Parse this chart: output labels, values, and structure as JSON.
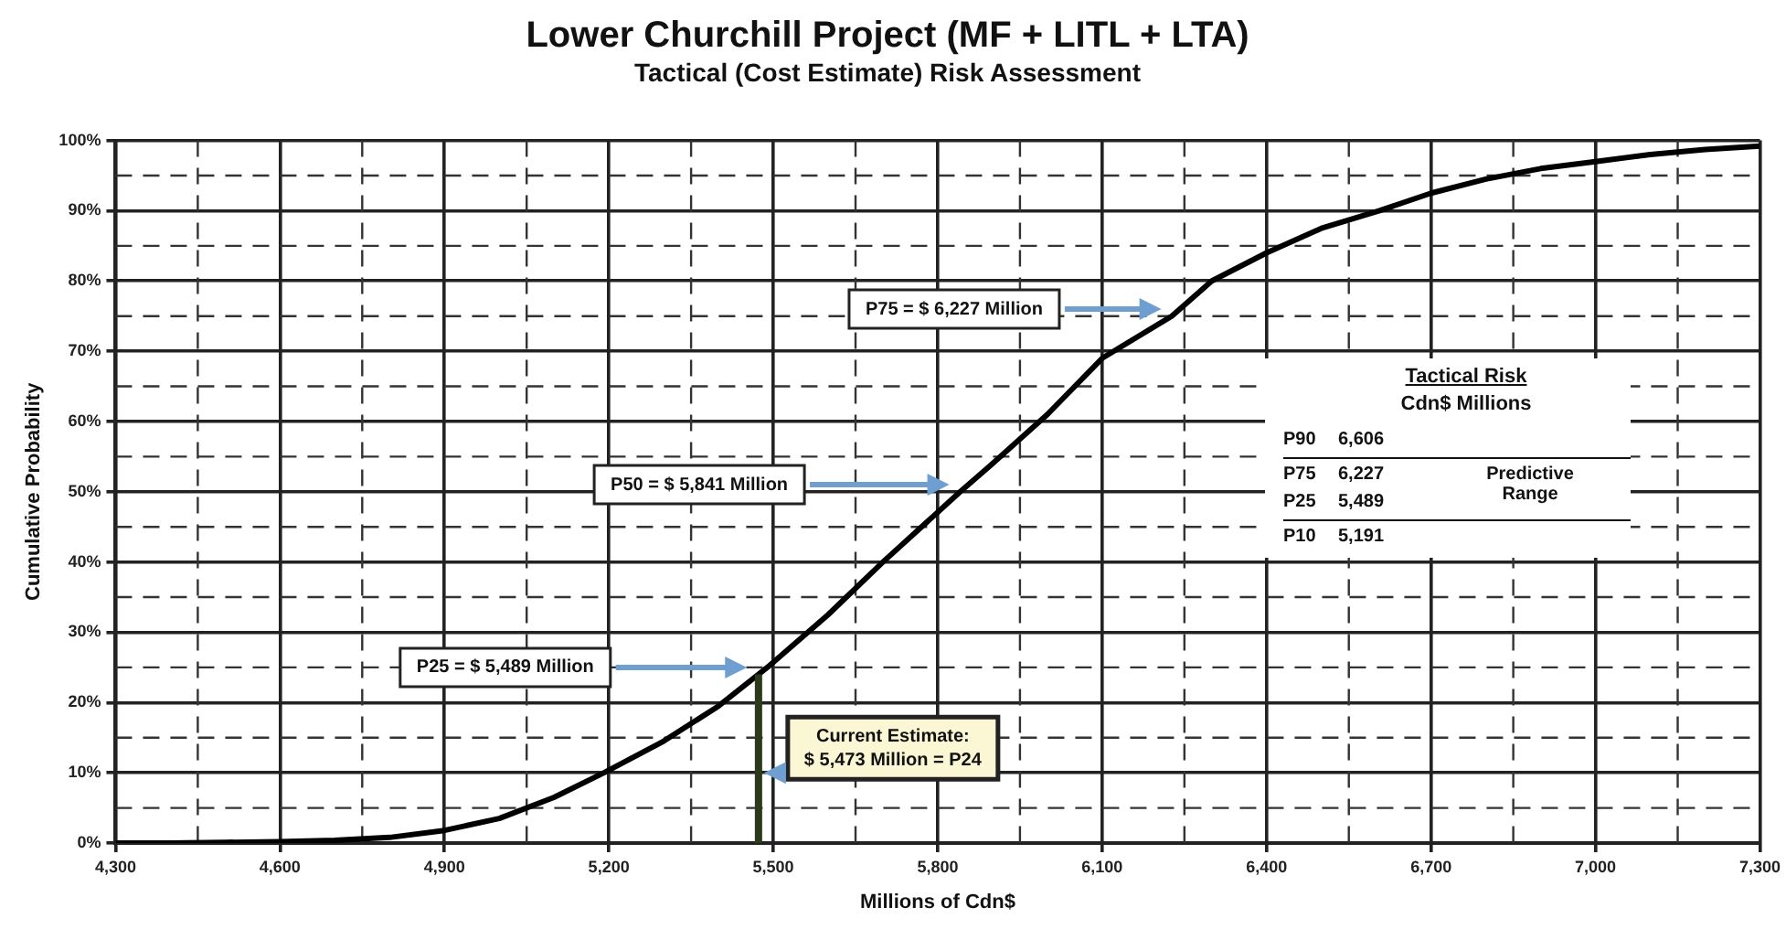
{
  "chart_data": {
    "type": "line",
    "title": "Lower Churchill Project (MF + LITL + LTA)",
    "subtitle": "Tactical (Cost Estimate) Risk Assessment",
    "xlabel": "Millions of Cdn$",
    "ylabel": "Cumulative Probability",
    "x": [
      4300,
      4400,
      4500,
      4600,
      4700,
      4800,
      4900,
      5000,
      5100,
      5191,
      5300,
      5400,
      5489,
      5600,
      5700,
      5841,
      5900,
      6000,
      6100,
      6227,
      6300,
      6400,
      6500,
      6606,
      6700,
      6800,
      6900,
      7000,
      7100,
      7200,
      7300
    ],
    "series": [
      {
        "color": "#000000",
        "values": [
          0,
          0,
          0.1,
          0.2,
          0.4,
          0.8,
          1.8,
          3.5,
          6.5,
          10,
          14.5,
          19.5,
          25,
          32.5,
          40,
          50,
          54,
          61,
          69,
          75,
          80,
          84,
          87.5,
          90,
          92.5,
          94.5,
          96,
          97,
          98,
          98.7,
          99.2
        ]
      }
    ],
    "xlim": [
      4300,
      7300
    ],
    "ylim": [
      0,
      100
    ],
    "xticks": [
      {
        "value": 4300,
        "label": "4,300"
      },
      {
        "value": 4450,
        "label": null
      },
      {
        "value": 4600,
        "label": "4,600"
      },
      {
        "value": 4750,
        "label": null
      },
      {
        "value": 4900,
        "label": "4,900"
      },
      {
        "value": 5050,
        "label": null
      },
      {
        "value": 5200,
        "label": "5,200"
      },
      {
        "value": 5350,
        "label": null
      },
      {
        "value": 5500,
        "label": "5,500"
      },
      {
        "value": 5650,
        "label": null
      },
      {
        "value": 5800,
        "label": "5,800"
      },
      {
        "value": 5950,
        "label": null
      },
      {
        "value": 6100,
        "label": "6,100"
      },
      {
        "value": 6250,
        "label": null
      },
      {
        "value": 6400,
        "label": "6,400"
      },
      {
        "value": 6550,
        "label": null
      },
      {
        "value": 6700,
        "label": "6,700"
      },
      {
        "value": 6850,
        "label": null
      },
      {
        "value": 7000,
        "label": "7,000"
      },
      {
        "value": 7150,
        "label": null
      },
      {
        "value": 7300,
        "label": "7,300"
      }
    ],
    "yticks": [
      {
        "value": 0,
        "label": "0%"
      },
      {
        "value": 5,
        "label": null
      },
      {
        "value": 10,
        "label": "10%"
      },
      {
        "value": 15,
        "label": null
      },
      {
        "value": 20,
        "label": "20%"
      },
      {
        "value": 25,
        "label": null
      },
      {
        "value": 30,
        "label": "30%"
      },
      {
        "value": 35,
        "label": null
      },
      {
        "value": 40,
        "label": "40%"
      },
      {
        "value": 45,
        "label": null
      },
      {
        "value": 50,
        "label": "50%"
      },
      {
        "value": 55,
        "label": null
      },
      {
        "value": 60,
        "label": "60%"
      },
      {
        "value": 65,
        "label": null
      },
      {
        "value": 70,
        "label": "70%"
      },
      {
        "value": 75,
        "label": null
      },
      {
        "value": 80,
        "label": "80%"
      },
      {
        "value": 85,
        "label": null
      },
      {
        "value": 90,
        "label": "90%"
      },
      {
        "value": 95,
        "label": null
      },
      {
        "value": 100,
        "label": "100%"
      }
    ],
    "grid": true,
    "legend": false,
    "marker": "none",
    "line_style": "solid",
    "ref_lines": [
      {
        "axis": "x",
        "value": 5473,
        "label": "Current Estimate:\n$ 5,473 Million = P24",
        "color": "#2c3a1c"
      }
    ],
    "annotations": [
      "P75 = $ 6,227 Million",
      "P50 = $ 5,841 Million",
      "P25 = $ 5,489 Million",
      "Tactical Risk",
      "Cdn$ Millions",
      "P90",
      "6,606",
      "P75",
      "6,227",
      "P25",
      "5,489",
      "P10",
      "5,191",
      "Predictive\nRange"
    ]
  }
}
